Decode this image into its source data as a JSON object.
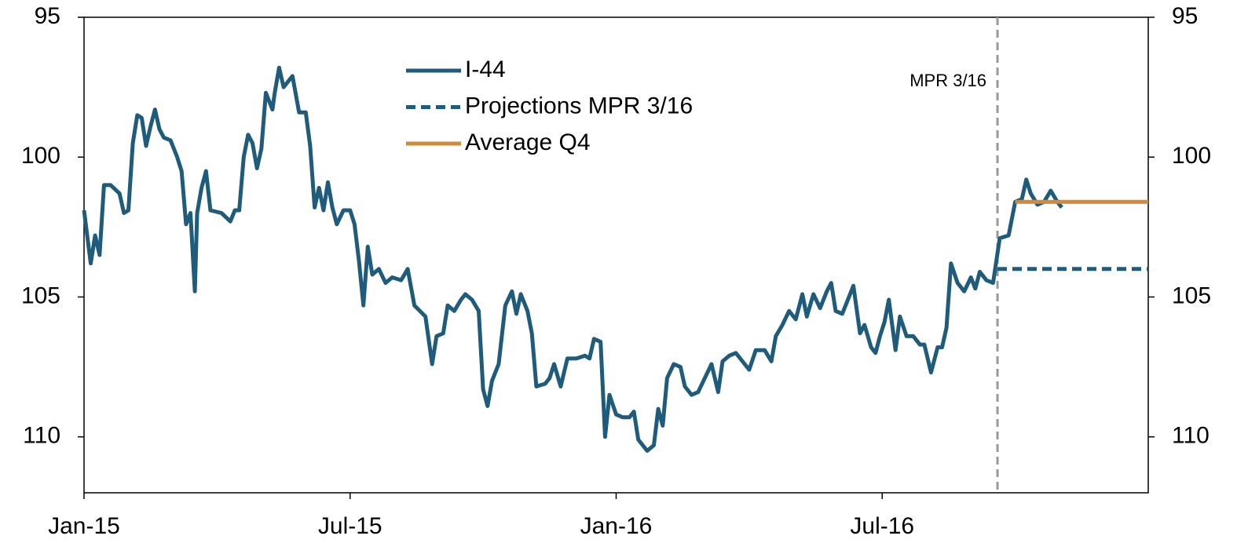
{
  "chart_data": {
    "type": "line",
    "xticks": [
      {
        "value": 0,
        "label": "Jan-15"
      },
      {
        "value": 6,
        "label": "Jul-15"
      },
      {
        "value": 12,
        "label": "Jan-16"
      },
      {
        "value": 18,
        "label": "Jul-16"
      }
    ],
    "xlim": [
      0,
      24
    ],
    "ylim": [
      95,
      112
    ],
    "yticks": [
      95,
      100,
      105,
      110
    ],
    "y_inverted": true,
    "y2lim": [
      95,
      112
    ],
    "y2ticks": [
      95,
      100,
      105,
      110
    ],
    "grid": false,
    "legend": "upper center",
    "annotation": {
      "text": "MPR 3/16",
      "x": 20.6
    },
    "series": [
      {
        "name": "I-44",
        "color": "#1f5b7a",
        "style": "solid",
        "x": [
          0,
          0.15,
          0.25,
          0.35,
          0.45,
          0.6,
          0.8,
          0.9,
          1.0,
          1.1,
          1.2,
          1.3,
          1.4,
          1.5,
          1.6,
          1.7,
          1.8,
          1.95,
          2.1,
          2.2,
          2.3,
          2.4,
          2.5,
          2.55,
          2.65,
          2.75,
          2.85,
          3.1,
          3.3,
          3.4,
          3.5,
          3.6,
          3.7,
          3.8,
          3.9,
          4.0,
          4.1,
          4.25,
          4.3,
          4.4,
          4.5,
          4.7,
          4.85,
          5.0,
          5.1,
          5.2,
          5.3,
          5.4,
          5.5,
          5.6,
          5.7,
          5.85,
          6.0,
          6.1,
          6.2,
          6.3,
          6.4,
          6.5,
          6.65,
          6.8,
          6.95,
          7.15,
          7.3,
          7.45,
          7.7,
          7.85,
          7.95,
          8.1,
          8.2,
          8.35,
          8.5,
          8.6,
          8.75,
          8.9,
          9.0,
          9.1,
          9.2,
          9.35,
          9.5,
          9.65,
          9.75,
          9.85,
          10.0,
          10.1,
          10.2,
          10.4,
          10.5,
          10.6,
          10.75,
          10.9,
          11.1,
          11.3,
          11.4,
          11.5,
          11.65,
          11.75,
          11.85,
          12.0,
          12.15,
          12.3,
          12.4,
          12.5,
          12.7,
          12.85,
          12.95,
          13.05,
          13.15,
          13.3,
          13.45,
          13.55,
          13.7,
          13.85,
          14.0,
          14.15,
          14.3,
          14.4,
          14.55,
          14.7,
          14.85,
          15.0,
          15.15,
          15.35,
          15.5,
          15.6,
          15.75,
          15.9,
          16.05,
          16.2,
          16.3,
          16.45,
          16.6,
          16.75,
          16.85,
          16.95,
          17.1,
          17.2,
          17.35,
          17.5,
          17.6,
          17.75,
          17.85,
          17.95,
          18.05,
          18.15,
          18.3,
          18.4,
          18.55,
          18.7,
          18.85,
          18.95,
          19.1,
          19.25,
          19.35,
          19.45,
          19.55,
          19.7,
          19.85,
          20.0,
          20.1,
          20.2,
          20.35,
          20.5,
          20.65,
          20.85,
          21.0,
          21.15,
          21.25,
          21.35,
          21.5,
          21.65,
          21.8,
          21.95,
          22.05
        ],
        "values": [
          101.9,
          103.8,
          102.8,
          103.5,
          101,
          101,
          101.3,
          102,
          101.9,
          99.5,
          98.5,
          98.6,
          99.6,
          98.9,
          98.3,
          99.0,
          99.3,
          99.4,
          100.0,
          100.5,
          102.4,
          102,
          104.8,
          102,
          101.1,
          100.5,
          101.9,
          102,
          102.3,
          101.9,
          101.9,
          100,
          99.2,
          99.5,
          100.4,
          99.7,
          97.7,
          98.3,
          97.7,
          96.8,
          97.5,
          97.1,
          98.4,
          98.4,
          99.6,
          101.8,
          101.1,
          101.9,
          100.9,
          101.8,
          102.4,
          101.9,
          101.9,
          102.4,
          103.7,
          105.3,
          103.2,
          104.2,
          104,
          104.5,
          104.3,
          104.4,
          104.0,
          105.3,
          105.7,
          107.4,
          106.4,
          106.3,
          105.3,
          105.5,
          105.1,
          104.9,
          105.1,
          105.5,
          108.3,
          108.9,
          108.0,
          107.4,
          105.3,
          104.8,
          105.6,
          104.9,
          105.5,
          106.3,
          108.2,
          108.1,
          107.9,
          107.4,
          108.2,
          107.2,
          107.2,
          107.1,
          107.2,
          106.5,
          106.6,
          110,
          108.5,
          109.2,
          109.3,
          109.3,
          109.1,
          110.1,
          110.5,
          110.3,
          109.0,
          109.6,
          107.9,
          107.4,
          107.5,
          108.2,
          108.5,
          108.4,
          107.9,
          107.4,
          108.4,
          107.3,
          107.1,
          107.0,
          107.3,
          107.6,
          106.9,
          106.9,
          107.3,
          106.4,
          106.0,
          105.5,
          105.8,
          104.9,
          105.7,
          104.9,
          105.4,
          104.8,
          104.5,
          105.5,
          105.6,
          105.2,
          104.6,
          106.3,
          106.0,
          106.8,
          107.0,
          106.4,
          105.9,
          105.1,
          106.9,
          105.7,
          106.4,
          106.4,
          106.7,
          106.7,
          107.7,
          106.8,
          106.8,
          106.1,
          103.8,
          104.5,
          104.8,
          104.3,
          104.7,
          104.1,
          104.4,
          104.5,
          102.9,
          102.8,
          101.6,
          101.5,
          100.8,
          101.3,
          101.7,
          101.6,
          101.2,
          101.6,
          101.8
        ]
      },
      {
        "name": "Projections MPR 3/16",
        "color": "#1f5b7a",
        "style": "dashed",
        "x": [
          20.6,
          24
        ],
        "values": [
          104,
          104
        ]
      },
      {
        "name": "Average Q4",
        "color": "#d08a3a",
        "style": "solid",
        "x": [
          21,
          24
        ],
        "values": [
          101.6,
          101.6
        ]
      }
    ]
  }
}
